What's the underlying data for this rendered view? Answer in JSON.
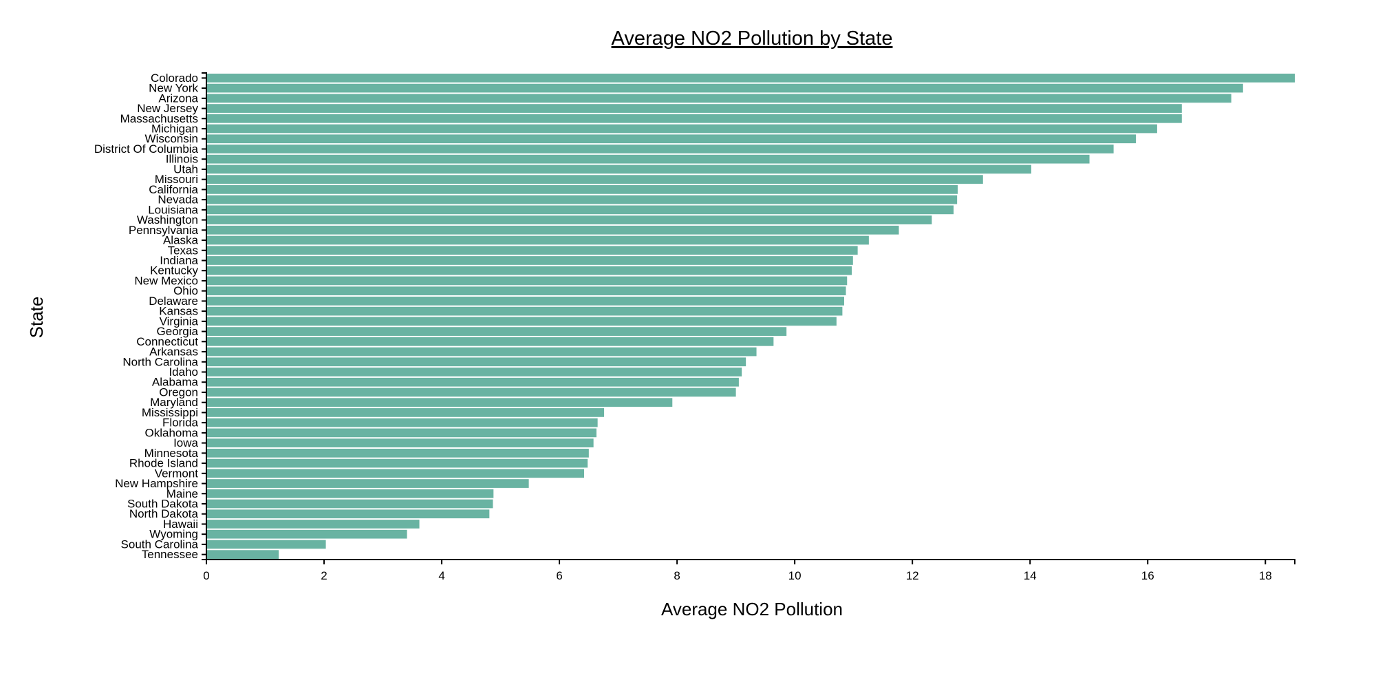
{
  "chart_data": {
    "type": "bar",
    "orientation": "horizontal",
    "title": "Average NO2 Pollution by State",
    "xlabel": "Average NO2 Pollution",
    "ylabel": "State",
    "xlim": [
      0,
      18.5
    ],
    "x_ticks": [
      "0",
      "2",
      "4",
      "6",
      "8",
      "10",
      "12",
      "14",
      "16",
      "18"
    ],
    "bar_color": "#69b3a2",
    "grid": false,
    "categories": [
      "Colorado",
      "New York",
      "Arizona",
      "New Jersey",
      "Massachusetts",
      "Michigan",
      "Wisconsin",
      "District Of Columbia",
      "Illinois",
      "Utah",
      "Missouri",
      "California",
      "Nevada",
      "Louisiana",
      "Washington",
      "Pennsylvania",
      "Alaska",
      "Texas",
      "Indiana",
      "Kentucky",
      "New Mexico",
      "Ohio",
      "Delaware",
      "Kansas",
      "Virginia",
      "Georgia",
      "Connecticut",
      "Arkansas",
      "North Carolina",
      "Idaho",
      "Alabama",
      "Oregon",
      "Maryland",
      "Mississippi",
      "Florida",
      "Oklahoma",
      "Iowa",
      "Minnesota",
      "Rhode Island",
      "Vermont",
      "New Hampshire",
      "Maine",
      "South Dakota",
      "North Dakota",
      "Hawaii",
      "Wyoming",
      "South Carolina",
      "Tennessee"
    ],
    "values": [
      18.5,
      17.62,
      17.42,
      16.58,
      16.58,
      16.16,
      15.8,
      15.42,
      15.01,
      14.02,
      13.2,
      12.77,
      12.76,
      12.7,
      12.33,
      11.77,
      11.26,
      11.07,
      10.99,
      10.97,
      10.89,
      10.87,
      10.84,
      10.81,
      10.71,
      9.86,
      9.64,
      9.35,
      9.17,
      9.1,
      9.05,
      9.0,
      7.92,
      6.76,
      6.65,
      6.63,
      6.58,
      6.5,
      6.48,
      6.42,
      5.48,
      4.88,
      4.87,
      4.81,
      3.62,
      3.41,
      2.03,
      1.23
    ]
  }
}
